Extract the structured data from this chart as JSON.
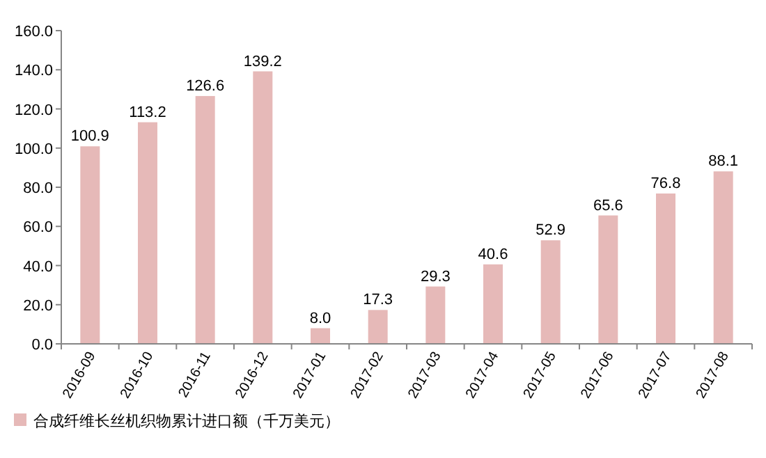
{
  "chart_data": {
    "type": "bar",
    "categories": [
      "2016-09",
      "2016-10",
      "2016-11",
      "2016-12",
      "2017-01",
      "2017-02",
      "2017-03",
      "2017-04",
      "2017-05",
      "2017-06",
      "2017-07",
      "2017-08"
    ],
    "series": [
      {
        "name": "合成纤维长丝机织物累计进口额（千万美元）",
        "color": "#e6b9b8",
        "values": [
          100.9,
          113.2,
          126.6,
          139.2,
          8.0,
          17.3,
          29.3,
          40.6,
          52.9,
          65.6,
          76.8,
          88.1
        ],
        "value_labels": [
          "100.9",
          "113.2",
          "126.6",
          "139.2",
          "8.0",
          "17.3",
          "29.3",
          "40.6",
          "52.9",
          "65.6",
          "76.8",
          "88.1"
        ]
      }
    ],
    "ylim": [
      0,
      160
    ],
    "yticks": [
      {
        "value": 0,
        "label": "0.0"
      },
      {
        "value": 20,
        "label": "20.0"
      },
      {
        "value": 40,
        "label": "40.0"
      },
      {
        "value": 60,
        "label": "60.0"
      },
      {
        "value": 80,
        "label": "80.0"
      },
      {
        "value": 100,
        "label": "100.0"
      },
      {
        "value": 120,
        "label": "120.0"
      },
      {
        "value": 140,
        "label": "140.0"
      },
      {
        "value": 160,
        "label": "160.0"
      }
    ],
    "legend": "bottom"
  }
}
